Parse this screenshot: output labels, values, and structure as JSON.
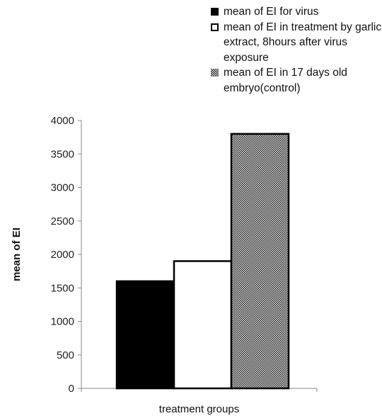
{
  "chart_data": {
    "type": "bar",
    "xlabel": "treatment groups",
    "ylabel": "mean of EI",
    "ylim": [
      0,
      4000
    ],
    "yticks": [
      0,
      500,
      1000,
      1500,
      2000,
      2500,
      3000,
      3500,
      4000
    ],
    "grid": false,
    "legend_position": "top-right",
    "series": [
      {
        "name": "mean of EI for virus",
        "values": [
          1600
        ],
        "fill": "#000000"
      },
      {
        "name": "mean of EI in treatment by garlic extract, 8hours after virus exposure",
        "values": [
          1900
        ],
        "fill": "#ffffff"
      },
      {
        "name": "mean of EI in 17 days old embryo(control)",
        "values": [
          3800
        ],
        "fill": "crosshatch-gray"
      }
    ]
  }
}
